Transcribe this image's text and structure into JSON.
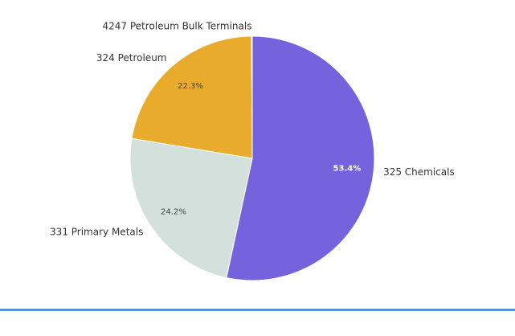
{
  "chart_data": {
    "type": "pie",
    "categories": [
      "325 Chemicals",
      "331 Primary Metals",
      "324 Petroleum",
      "4247 Petroleum Bulk Terminals"
    ],
    "values": [
      53.4,
      24.2,
      22.3,
      0.1
    ],
    "value_labels": [
      "53.4%",
      "24.2%",
      "22.3%",
      null
    ],
    "colors": [
      "#7563dd",
      "#d3e0db",
      "#e8ab2c",
      "#4d6fb8"
    ]
  }
}
